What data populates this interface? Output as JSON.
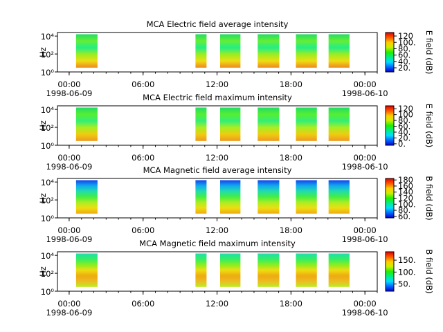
{
  "chart_data": [
    {
      "type": "spectrogram",
      "title": "MCA  Electric field average intensity",
      "ylabel": "Hz",
      "log_y": true,
      "xlim": [
        -0.95,
        25
      ],
      "xticks": [
        {
          "value": 0,
          "label": "00:00\n1998-06-09"
        },
        {
          "value": 6,
          "label": "06:00"
        },
        {
          "value": 12,
          "label": "12:00"
        },
        {
          "value": 18,
          "label": "18:00"
        },
        {
          "value": 24,
          "label": "00:00\n1998-06-10"
        }
      ],
      "ylim": [
        1,
        25000
      ],
      "yticks": [
        {
          "value": 1,
          "label": "10⁰"
        },
        {
          "value": 100,
          "label": "10²"
        },
        {
          "value": 10000,
          "label": "10⁴"
        }
      ],
      "segments": [
        [
          0.56,
          2.3
        ],
        [
          10.25,
          11.15
        ],
        [
          12.25,
          13.9
        ],
        [
          15.3,
          17.05
        ],
        [
          18.4,
          20.1
        ],
        [
          21.05,
          22.75
        ]
      ],
      "frequency_range": [
        3,
        16000
      ],
      "fill_colors": [
        "#22dd66",
        "#66ee33",
        "#22ee88",
        "#99ee22",
        "#eedd11",
        "#ee8822"
      ],
      "colorbar": {
        "label": "E field (dB)",
        "zlim": [
          7,
          131
        ],
        "ticks": [
          {
            "value": 120,
            "label": "120"
          },
          {
            "value": 100,
            "label": "100."
          },
          {
            "value": 80,
            "label": "80."
          },
          {
            "value": 60,
            "label": "60."
          },
          {
            "value": 40,
            "label": "40."
          },
          {
            "value": 20,
            "label": "20."
          }
        ]
      }
    },
    {
      "type": "spectrogram",
      "title": "MCA  Electric field maximum intensity",
      "ylabel": "Hz",
      "log_y": true,
      "xlim": [
        -0.95,
        25
      ],
      "xticks": [
        {
          "value": 0,
          "label": "00:00\n1998-06-09"
        },
        {
          "value": 6,
          "label": "06:00"
        },
        {
          "value": 12,
          "label": "12:00"
        },
        {
          "value": 18,
          "label": "18:00"
        },
        {
          "value": 24,
          "label": "00:00\n1998-06-10"
        }
      ],
      "ylim": [
        1,
        25000
      ],
      "yticks": [
        {
          "value": 1,
          "label": "10⁰"
        },
        {
          "value": 100,
          "label": "10²"
        },
        {
          "value": 10000,
          "label": "10⁴"
        }
      ],
      "segments": [
        [
          0.56,
          2.3
        ],
        [
          10.25,
          11.15
        ],
        [
          12.25,
          13.9
        ],
        [
          15.3,
          17.05
        ],
        [
          18.4,
          20.1
        ],
        [
          21.05,
          22.75
        ]
      ],
      "frequency_range": [
        3,
        16000
      ],
      "fill_colors": [
        "#22dd66",
        "#55ee33",
        "#33ee77",
        "#aaee22",
        "#eecc11",
        "#ee9922"
      ],
      "colorbar": {
        "label": "E field (dB)",
        "zlim": [
          -5,
          130
        ],
        "ticks": [
          {
            "value": 120,
            "label": "120"
          },
          {
            "value": 100,
            "label": "100"
          },
          {
            "value": 80,
            "label": "80."
          },
          {
            "value": 60,
            "label": "60."
          },
          {
            "value": 40,
            "label": "40."
          },
          {
            "value": 20,
            "label": "20."
          },
          {
            "value": 0,
            "label": "0."
          }
        ]
      }
    },
    {
      "type": "spectrogram",
      "title": "MCA  Magnetic field average intensity",
      "ylabel": "Hz",
      "log_y": true,
      "xlim": [
        -0.95,
        25
      ],
      "xticks": [
        {
          "value": 0,
          "label": "00:00\n1998-06-09"
        },
        {
          "value": 6,
          "label": "06:00"
        },
        {
          "value": 12,
          "label": "12:00"
        },
        {
          "value": 18,
          "label": "18:00"
        },
        {
          "value": 24,
          "label": "00:00\n1998-06-10"
        }
      ],
      "ylim": [
        1,
        25000
      ],
      "yticks": [
        {
          "value": 1,
          "label": "10⁰"
        },
        {
          "value": 100,
          "label": "10²"
        },
        {
          "value": 10000,
          "label": "10⁴"
        }
      ],
      "segments": [
        [
          0.56,
          2.3
        ],
        [
          10.25,
          11.15
        ],
        [
          12.25,
          13.9
        ],
        [
          15.3,
          17.05
        ],
        [
          18.4,
          20.1
        ],
        [
          21.05,
          22.75
        ]
      ],
      "frequency_range": [
        3,
        16000
      ],
      "fill_colors": [
        "#1144ee",
        "#11aaee",
        "#22ddaa",
        "#44ee44",
        "#aaee22",
        "#eedd11",
        "#eeaa11"
      ],
      "colorbar": {
        "label": "B field (dB)",
        "zlim": [
          55,
          185
        ],
        "ticks": [
          {
            "value": 180,
            "label": "180"
          },
          {
            "value": 160,
            "label": "160"
          },
          {
            "value": 140,
            "label": "140"
          },
          {
            "value": 120,
            "label": "120"
          },
          {
            "value": 100,
            "label": "100."
          },
          {
            "value": 80,
            "label": "80."
          },
          {
            "value": 60,
            "label": "60."
          }
        ]
      }
    },
    {
      "type": "spectrogram",
      "title": "MCA  Magnetic field maximum intensity",
      "ylabel": "Hz",
      "log_y": true,
      "xlim": [
        -0.95,
        25
      ],
      "xticks": [
        {
          "value": 0,
          "label": "00:00\n1998-06-09"
        },
        {
          "value": 6,
          "label": "06:00"
        },
        {
          "value": 12,
          "label": "12:00"
        },
        {
          "value": 18,
          "label": "18:00"
        },
        {
          "value": 24,
          "label": "00:00\n1998-06-10"
        }
      ],
      "ylim": [
        1,
        25000
      ],
      "yticks": [
        {
          "value": 1,
          "label": "10⁰"
        },
        {
          "value": 100,
          "label": "10²"
        },
        {
          "value": 10000,
          "label": "10⁴"
        }
      ],
      "segments": [
        [
          0.56,
          2.3
        ],
        [
          10.25,
          11.15
        ],
        [
          12.25,
          13.9
        ],
        [
          15.3,
          17.05
        ],
        [
          18.4,
          20.1
        ],
        [
          21.05,
          22.75
        ]
      ],
      "frequency_range": [
        3,
        16000
      ],
      "fill_colors": [
        "#22ddaa",
        "#33ee66",
        "#88ee22",
        "#eedd11",
        "#eeaa11",
        "#eebb22",
        "#bbee22"
      ],
      "colorbar": {
        "label": "B field (dB)",
        "zlim": [
          20,
          185
        ],
        "ticks": [
          {
            "value": 150,
            "label": "150."
          },
          {
            "value": 100,
            "label": "100."
          },
          {
            "value": 50,
            "label": "50."
          }
        ]
      }
    }
  ]
}
